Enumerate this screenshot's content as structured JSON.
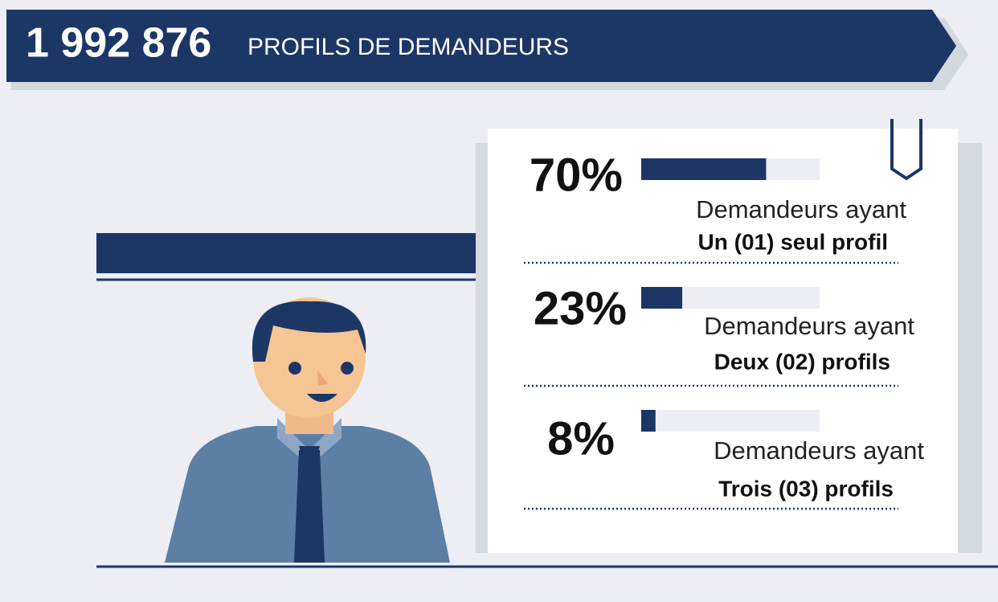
{
  "header": {
    "number": "1 992 876",
    "title": "PROFILS DE DEMANDEURS"
  },
  "items": [
    {
      "value": 70,
      "value_label": "70%",
      "line1": "Demandeurs ayant",
      "line2": "Un (01) seul profil"
    },
    {
      "value": 23,
      "value_label": "23%",
      "line1": "Demandeurs ayant",
      "line2": "Deux (02) profils"
    },
    {
      "value": 8,
      "value_label": "8%",
      "line1": "Demandeurs ayant",
      "line2": "Trois (03) profils"
    }
  ]
}
